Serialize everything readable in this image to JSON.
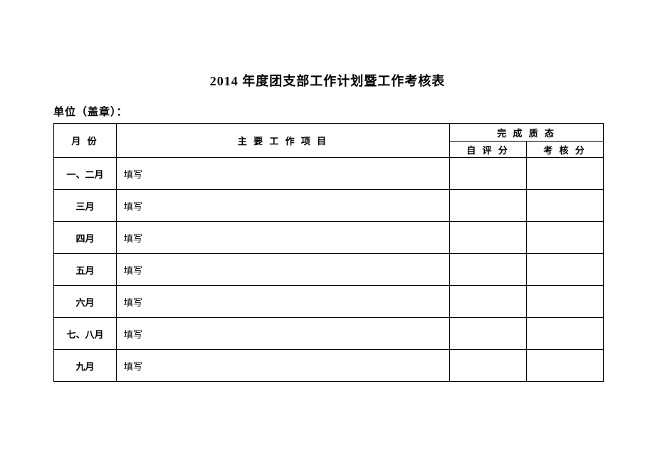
{
  "title": "2014 年度团支部工作计划暨工作考核表",
  "subtitle": "单位（盖章）：",
  "headers": {
    "month": "月 份",
    "work": "主 要 工 作 项 目",
    "quality_group": "完 成 质 态",
    "self_score": "自 评 分",
    "assess_score": "考 核 分"
  },
  "rows": [
    {
      "month": "一、二月",
      "work": "填写",
      "self": "",
      "assess": ""
    },
    {
      "month": "三月",
      "work": "填写",
      "self": "",
      "assess": ""
    },
    {
      "month": "四月",
      "work": "填写",
      "self": "",
      "assess": ""
    },
    {
      "month": "五月",
      "work": "填写",
      "self": "",
      "assess": ""
    },
    {
      "month": "六月",
      "work": "填写",
      "self": "",
      "assess": ""
    },
    {
      "month": "七、八月",
      "work": "填写",
      "self": "",
      "assess": ""
    },
    {
      "month": "九月",
      "work": "填写",
      "self": "",
      "assess": ""
    }
  ]
}
